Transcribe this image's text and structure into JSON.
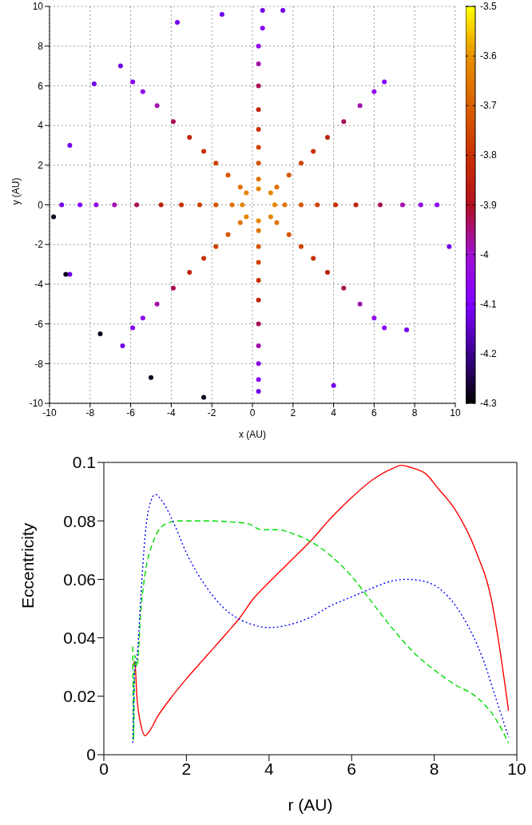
{
  "chart_data": [
    {
      "type": "scatter",
      "xlabel": "x (AU)",
      "ylabel": "y (AU)",
      "xlim": [
        -10,
        10
      ],
      "ylim": [
        -10,
        10
      ],
      "xticks": [
        -10,
        -8,
        -6,
        -4,
        -2,
        0,
        2,
        4,
        6,
        8,
        10
      ],
      "yticks": [
        -10,
        -8,
        -6,
        -4,
        -2,
        0,
        2,
        4,
        6,
        8,
        10
      ],
      "grid": true,
      "clim": [
        -4.3,
        -3.5
      ],
      "cticks": [
        -4.3,
        -4.2,
        -4.1,
        -4,
        -3.9,
        -3.8,
        -3.7,
        -3.6,
        -3.5
      ],
      "series": [
        {
          "x": [
            1.1,
            0.9,
            0.3,
            -0.3,
            -0.5,
            -0.3,
            0.3,
            0.9
          ],
          "values": [
            0,
            0.6,
            0.8,
            0.6,
            0,
            -0.6,
            -0.8,
            -0.6
          ],
          "cvalues": [
            -3.62,
            -3.62,
            -3.62,
            -3.62,
            -3.62,
            -3.62,
            -3.62,
            -3.62
          ]
        },
        {
          "x": [
            1.6,
            1.2,
            0.3,
            -0.6,
            -1.0,
            -0.6,
            0.3,
            1.2
          ],
          "values": [
            0,
            0.9,
            1.3,
            0.9,
            0,
            -0.9,
            -1.3,
            -0.9
          ],
          "cvalues": [
            -3.66,
            -3.66,
            -3.66,
            -3.66,
            -3.66,
            -3.66,
            -3.66,
            -3.66
          ]
        },
        {
          "x": [
            2.4,
            1.8,
            0.3,
            -1.2,
            -1.8,
            -1.2,
            0.3,
            1.8
          ],
          "values": [
            0,
            1.5,
            2.1,
            1.5,
            0,
            -1.5,
            -2.1,
            -1.5
          ],
          "cvalues": [
            -3.72,
            -3.72,
            -3.72,
            -3.72,
            -3.72,
            -3.72,
            -3.72,
            -3.72
          ]
        },
        {
          "x": [
            3.2,
            2.4,
            0.3,
            -1.8,
            -2.6,
            -1.8,
            0.3,
            2.4
          ],
          "values": [
            0,
            2.1,
            2.9,
            2.1,
            0,
            -2.1,
            -2.9,
            -2.1
          ],
          "cvalues": [
            -3.76,
            -3.76,
            -3.76,
            -3.76,
            -3.76,
            -3.76,
            -3.76,
            -3.76
          ]
        },
        {
          "x": [
            4.1,
            3.0,
            0.3,
            -2.4,
            -3.5,
            -2.4,
            0.3,
            3.0
          ],
          "values": [
            0,
            2.7,
            3.8,
            2.7,
            0,
            -2.7,
            -3.8,
            -2.7
          ],
          "cvalues": [
            -3.8,
            -3.8,
            -3.8,
            -3.8,
            -3.8,
            -3.8,
            -3.8,
            -3.8
          ]
        },
        {
          "x": [
            5.1,
            3.7,
            0.3,
            -3.1,
            -4.5,
            -3.1,
            0.3,
            3.7
          ],
          "values": [
            0,
            3.4,
            4.8,
            3.4,
            0,
            -3.4,
            -4.8,
            -3.4
          ],
          "cvalues": [
            -3.84,
            -3.84,
            -3.84,
            -3.84,
            -3.84,
            -3.84,
            -3.84,
            -3.84
          ]
        },
        {
          "x": [
            6.3,
            4.5,
            0.3,
            -3.9,
            -5.7,
            -3.9,
            0.3,
            4.5
          ],
          "values": [
            0,
            4.2,
            6.0,
            4.2,
            0,
            -4.2,
            -6.0,
            -4.2
          ],
          "cvalues": [
            -3.93,
            -3.93,
            -3.93,
            -3.93,
            -3.93,
            -3.93,
            -3.93,
            -3.93
          ]
        },
        {
          "x": [
            7.4,
            5.3,
            0.3,
            -4.7,
            -6.8,
            -4.7,
            0.3,
            5.3
          ],
          "values": [
            0,
            5.0,
            7.1,
            5.0,
            0,
            -5.0,
            -7.1,
            -5.0
          ],
          "cvalues": [
            -3.98,
            -3.98,
            -3.98,
            -3.98,
            -3.98,
            -3.98,
            -3.98,
            -3.98
          ]
        },
        {
          "x": [
            8.3,
            6.0,
            0.3,
            -5.4,
            -7.7,
            -5.4,
            0.3,
            6.0
          ],
          "values": [
            0,
            5.7,
            8.0,
            5.7,
            0,
            -5.7,
            -8.0,
            -5.7
          ],
          "cvalues": [
            -4.05,
            -4.05,
            -4.05,
            -4.05,
            -4.05,
            -4.05,
            -4.05,
            -4.05
          ]
        },
        {
          "x": [
            9.1,
            6.5,
            0.5,
            -5.9,
            -8.5,
            -5.9,
            0.3,
            6.5
          ],
          "values": [
            0,
            6.2,
            8.9,
            6.2,
            0,
            -6.2,
            -8.8,
            -6.2
          ],
          "cvalues": [
            -4.08,
            -4.08,
            -4.08,
            -4.08,
            -4.08,
            -4.08,
            -4.08,
            -4.08
          ]
        },
        {
          "x": [
            1.5,
            0.5,
            -1.5,
            -3.7,
            -6.5,
            -7.8,
            -9.0,
            -9.4,
            -9.0,
            -6.4,
            0.3,
            4.0,
            7.6,
            9.7
          ],
          "values": [
            9.8,
            9.8,
            9.6,
            9.2,
            7.0,
            6.1,
            3.0,
            0,
            -3.5,
            -7.1,
            -9.4,
            -9.1,
            -6.3,
            -2.1
          ],
          "cvalues": [
            -4.12,
            -4.12,
            -4.12,
            -4.12,
            -4.12,
            -4.12,
            -4.12,
            -4.12,
            -4.12,
            -4.12,
            -4.12,
            -4.12,
            -4.12,
            -4.12
          ]
        },
        {
          "x": [
            -9.8,
            -9.2,
            -7.5,
            -5.0,
            -2.4
          ],
          "values": [
            -0.6,
            -3.5,
            -6.5,
            -8.7,
            -9.7
          ],
          "cvalues": [
            -4.28,
            -4.28,
            -4.28,
            -4.28,
            -4.28
          ]
        }
      ]
    },
    {
      "type": "line",
      "xlabel": "r (AU)",
      "ylabel": "Eccentricity",
      "xlim": [
        0,
        10
      ],
      "ylim": [
        0,
        0.1
      ],
      "xticks": [
        0,
        2,
        4,
        6,
        8,
        10
      ],
      "yticks": [
        0,
        0.02,
        0.04,
        0.06,
        0.08,
        0.1
      ],
      "grid": false,
      "series": [
        {
          "color": "#ff0000",
          "line_style": "solid",
          "x": [
            0.7,
            0.75,
            0.8,
            0.9,
            1.0,
            1.1,
            1.3,
            1.6,
            2,
            2.5,
            3,
            3.3,
            3.6,
            4,
            4.5,
            5,
            5.5,
            6,
            6.5,
            7,
            7.2,
            7.5,
            7.8,
            8.1,
            8.5,
            9,
            9.4,
            9.6,
            9.8
          ],
          "values": [
            0.03,
            0.032,
            0.02,
            0.01,
            0.0065,
            0.008,
            0.013,
            0.019,
            0.026,
            0.034,
            0.042,
            0.047,
            0.053,
            0.059,
            0.066,
            0.073,
            0.081,
            0.088,
            0.094,
            0.098,
            0.099,
            0.098,
            0.096,
            0.091,
            0.084,
            0.07,
            0.052,
            0.035,
            0.015
          ]
        },
        {
          "color": "#00dd00",
          "line_style": "dashed",
          "x": [
            0.7,
            0.72,
            0.75,
            0.8,
            0.9,
            1.0,
            1.2,
            1.5,
            1.8,
            2.5,
            3,
            3.5,
            3.8,
            4.2,
            4.6,
            5,
            5.5,
            6,
            6.5,
            7,
            7.5,
            8,
            8.5,
            9,
            9.5,
            9.8
          ],
          "values": [
            0.037,
            0.005,
            0.034,
            0.03,
            0.05,
            0.062,
            0.073,
            0.079,
            0.08,
            0.08,
            0.0797,
            0.079,
            0.077,
            0.077,
            0.0755,
            0.073,
            0.068,
            0.061,
            0.052,
            0.043,
            0.035,
            0.029,
            0.024,
            0.02,
            0.012,
            0.004
          ]
        },
        {
          "color": "#0000ff",
          "line_style": "dotted",
          "x": [
            0.7,
            0.75,
            0.8,
            0.9,
            1.0,
            1.1,
            1.25,
            1.4,
            1.7,
            2,
            2.5,
            3,
            3.5,
            4,
            4.5,
            5,
            5.5,
            6,
            6.5,
            7,
            7.3,
            7.7,
            8.2,
            8.7,
            9.2,
            9.5,
            9.8
          ],
          "values": [
            0.004,
            0.03,
            0.033,
            0.055,
            0.075,
            0.085,
            0.089,
            0.087,
            0.079,
            0.069,
            0.057,
            0.049,
            0.045,
            0.0435,
            0.0445,
            0.047,
            0.051,
            0.054,
            0.057,
            0.0595,
            0.06,
            0.0595,
            0.056,
            0.047,
            0.032,
            0.019,
            0.006
          ]
        }
      ]
    }
  ]
}
